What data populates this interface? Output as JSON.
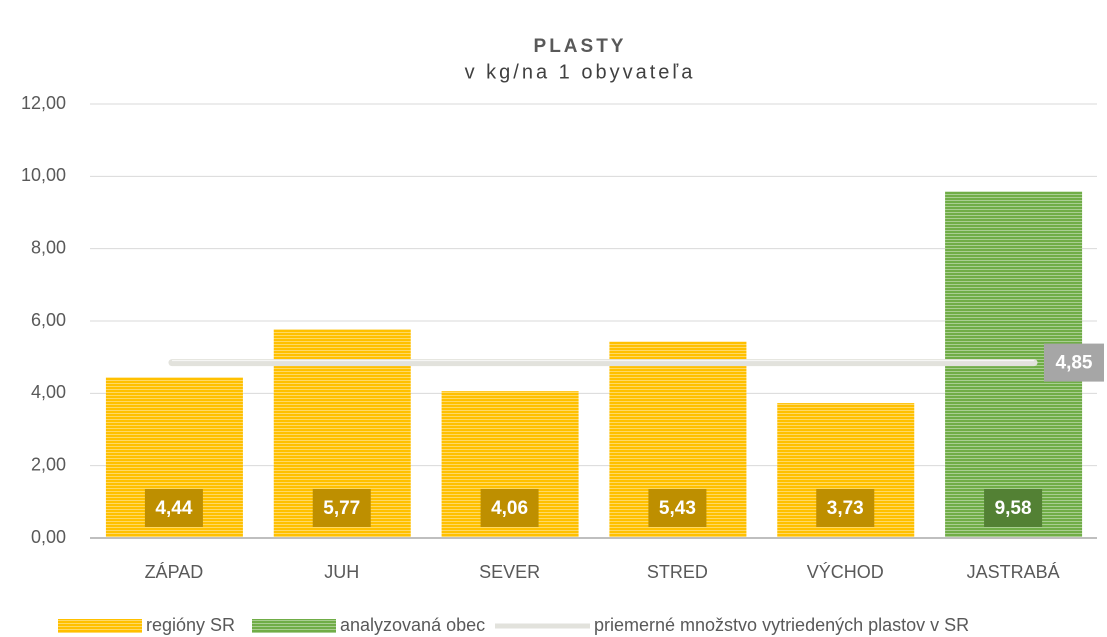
{
  "chart_data": {
    "type": "bar",
    "title": "PLASTY",
    "subtitle": "v kg/na 1 obyvateľa",
    "categories": [
      "ZÁPAD",
      "JUH",
      "SEVER",
      "STRED",
      "VÝCHOD",
      "JASTRABÁ"
    ],
    "series": [
      {
        "name": "regióny SR",
        "color": "#ffc000",
        "values": [
          4.44,
          5.77,
          4.06,
          5.43,
          3.73,
          null
        ],
        "value_labels": [
          "4,44",
          "5,77",
          "4,06",
          "5,43",
          "3,73",
          null
        ]
      },
      {
        "name": "analyzovaná obec",
        "color": "#70ad47",
        "values": [
          null,
          null,
          null,
          null,
          null,
          9.58
        ],
        "value_labels": [
          null,
          null,
          null,
          null,
          null,
          "9,58"
        ]
      }
    ],
    "reference_line": {
      "name": "priemerné množstvo vytriedených plastov v SR",
      "color": "#e2e2dc",
      "value": 4.85,
      "value_label": "4,85"
    },
    "ylim": [
      0,
      12
    ],
    "yticks": [
      {
        "value": 0,
        "label": "0,00"
      },
      {
        "value": 2,
        "label": "2,00"
      },
      {
        "value": 4,
        "label": "4,00"
      },
      {
        "value": 6,
        "label": "6,00"
      },
      {
        "value": 8,
        "label": "8,00"
      },
      {
        "value": 10,
        "label": "10,00"
      },
      {
        "value": 12,
        "label": "12,00"
      }
    ],
    "grid": true
  }
}
